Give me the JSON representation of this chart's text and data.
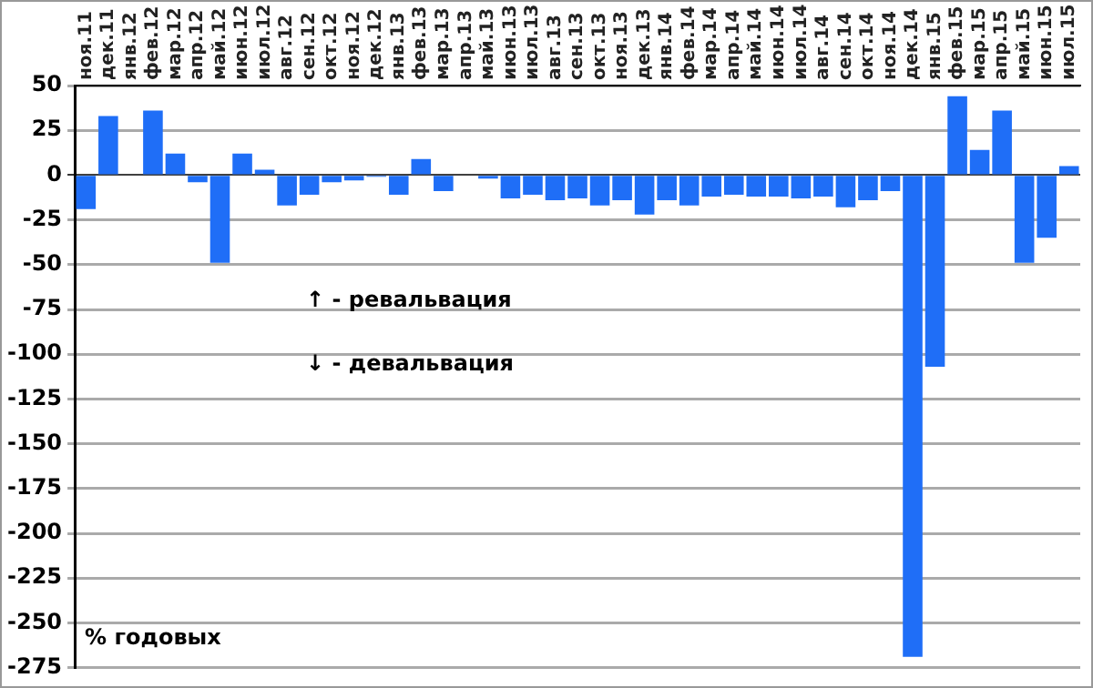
{
  "chart_data": {
    "type": "bar",
    "categories": [
      "ноя.11",
      "дек.11",
      "янв.12",
      "фев.12",
      "мар.12",
      "апр.12",
      "май.12",
      "июн.12",
      "июл.12",
      "авг.12",
      "сен.12",
      "окт.12",
      "ноя.12",
      "дек.12",
      "янв.13",
      "фев.13",
      "мар.13",
      "апр.13",
      "май.13",
      "июн.13",
      "июл.13",
      "авг.13",
      "сен.13",
      "окт.13",
      "ноя.13",
      "дек.13",
      "янв.14",
      "фев.14",
      "мар.14",
      "апр.14",
      "май.14",
      "июн.14",
      "июл.14",
      "авг.14",
      "сен.14",
      "окт.14",
      "ноя.14",
      "дек.14",
      "янв.15",
      "фев.15",
      "мар.15",
      "апр.15",
      "май.15",
      "июн.15",
      "июл.15"
    ],
    "values": [
      -19,
      33,
      0,
      36,
      12,
      -4,
      -49,
      12,
      3,
      -17,
      -11,
      -4,
      -3,
      -1,
      -11,
      9,
      -9,
      0,
      -2,
      -13,
      -11,
      -14,
      -13,
      -17,
      -14,
      -22,
      -14,
      -17,
      -12,
      -11,
      -12,
      -12,
      -13,
      -12,
      -18,
      -14,
      -9,
      -269,
      -107,
      44,
      14,
      36,
      -49,
      -35,
      5
    ],
    "color": "#1f6ef7",
    "ylim": [
      -275,
      50
    ],
    "yticks": [
      -275,
      -250,
      -225,
      -200,
      -175,
      -150,
      -125,
      -100,
      -75,
      -50,
      -25,
      0,
      25,
      50
    ],
    "grid": "y",
    "annotations": [
      "↑ - ревальвация",
      "↓ - девальвация",
      "% годовых"
    ]
  }
}
